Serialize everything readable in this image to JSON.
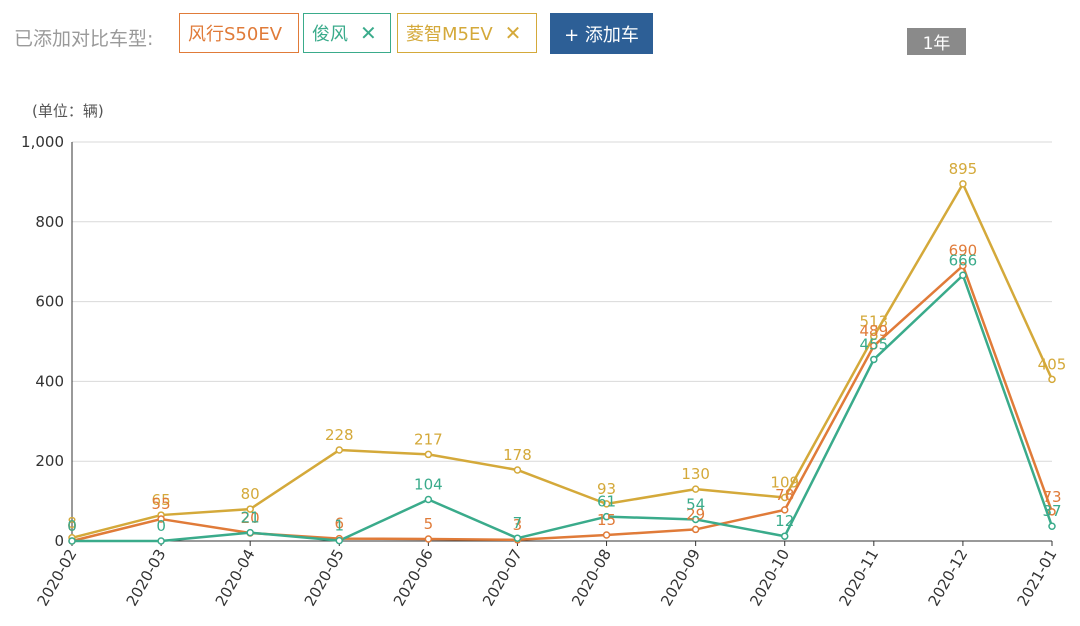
{
  "toolbar": {
    "compare_label": "已添加对比车型:",
    "add_button": "+ 添加车",
    "range_button": "1年",
    "remove_glyph": "✕"
  },
  "cars": [
    {
      "name": "风行S50EV",
      "color": "#e07b39",
      "removable": false
    },
    {
      "name": "俊风",
      "color": "#3aab8b",
      "removable": true
    },
    {
      "name": "菱智M5EV",
      "color": "#d4a93a",
      "removable": true
    }
  ],
  "chart_data": {
    "type": "line",
    "unit_label": "(单位：辆)",
    "categories": [
      "2020-02",
      "2020-03",
      "2020-04",
      "2020-05",
      "2020-06",
      "2020-07",
      "2020-08",
      "2020-09",
      "2020-10",
      "2020-11",
      "2020-12",
      "2021-01"
    ],
    "ylim": [
      0,
      1000
    ],
    "yticks": [
      "0",
      "200",
      "400",
      "600",
      "800",
      "1,000"
    ],
    "yticks_values": [
      0,
      200,
      400,
      600,
      800,
      1000
    ],
    "grid": true,
    "series": [
      {
        "name": "菱智M5EV",
        "color": "#d4a93a",
        "values": [
          8,
          65,
          80,
          228,
          217,
          178,
          93,
          130,
          109,
          513,
          895,
          405
        ]
      },
      {
        "name": "风行S50EV",
        "color": "#e07b39",
        "values": [
          0,
          55,
          20,
          6,
          5,
          3,
          15,
          29,
          78,
          489,
          690,
          73
        ]
      },
      {
        "name": "俊风",
        "color": "#3aab8b",
        "values": [
          0,
          0,
          21,
          1,
          104,
          7,
          61,
          54,
          12,
          455,
          666,
          37
        ]
      }
    ]
  }
}
